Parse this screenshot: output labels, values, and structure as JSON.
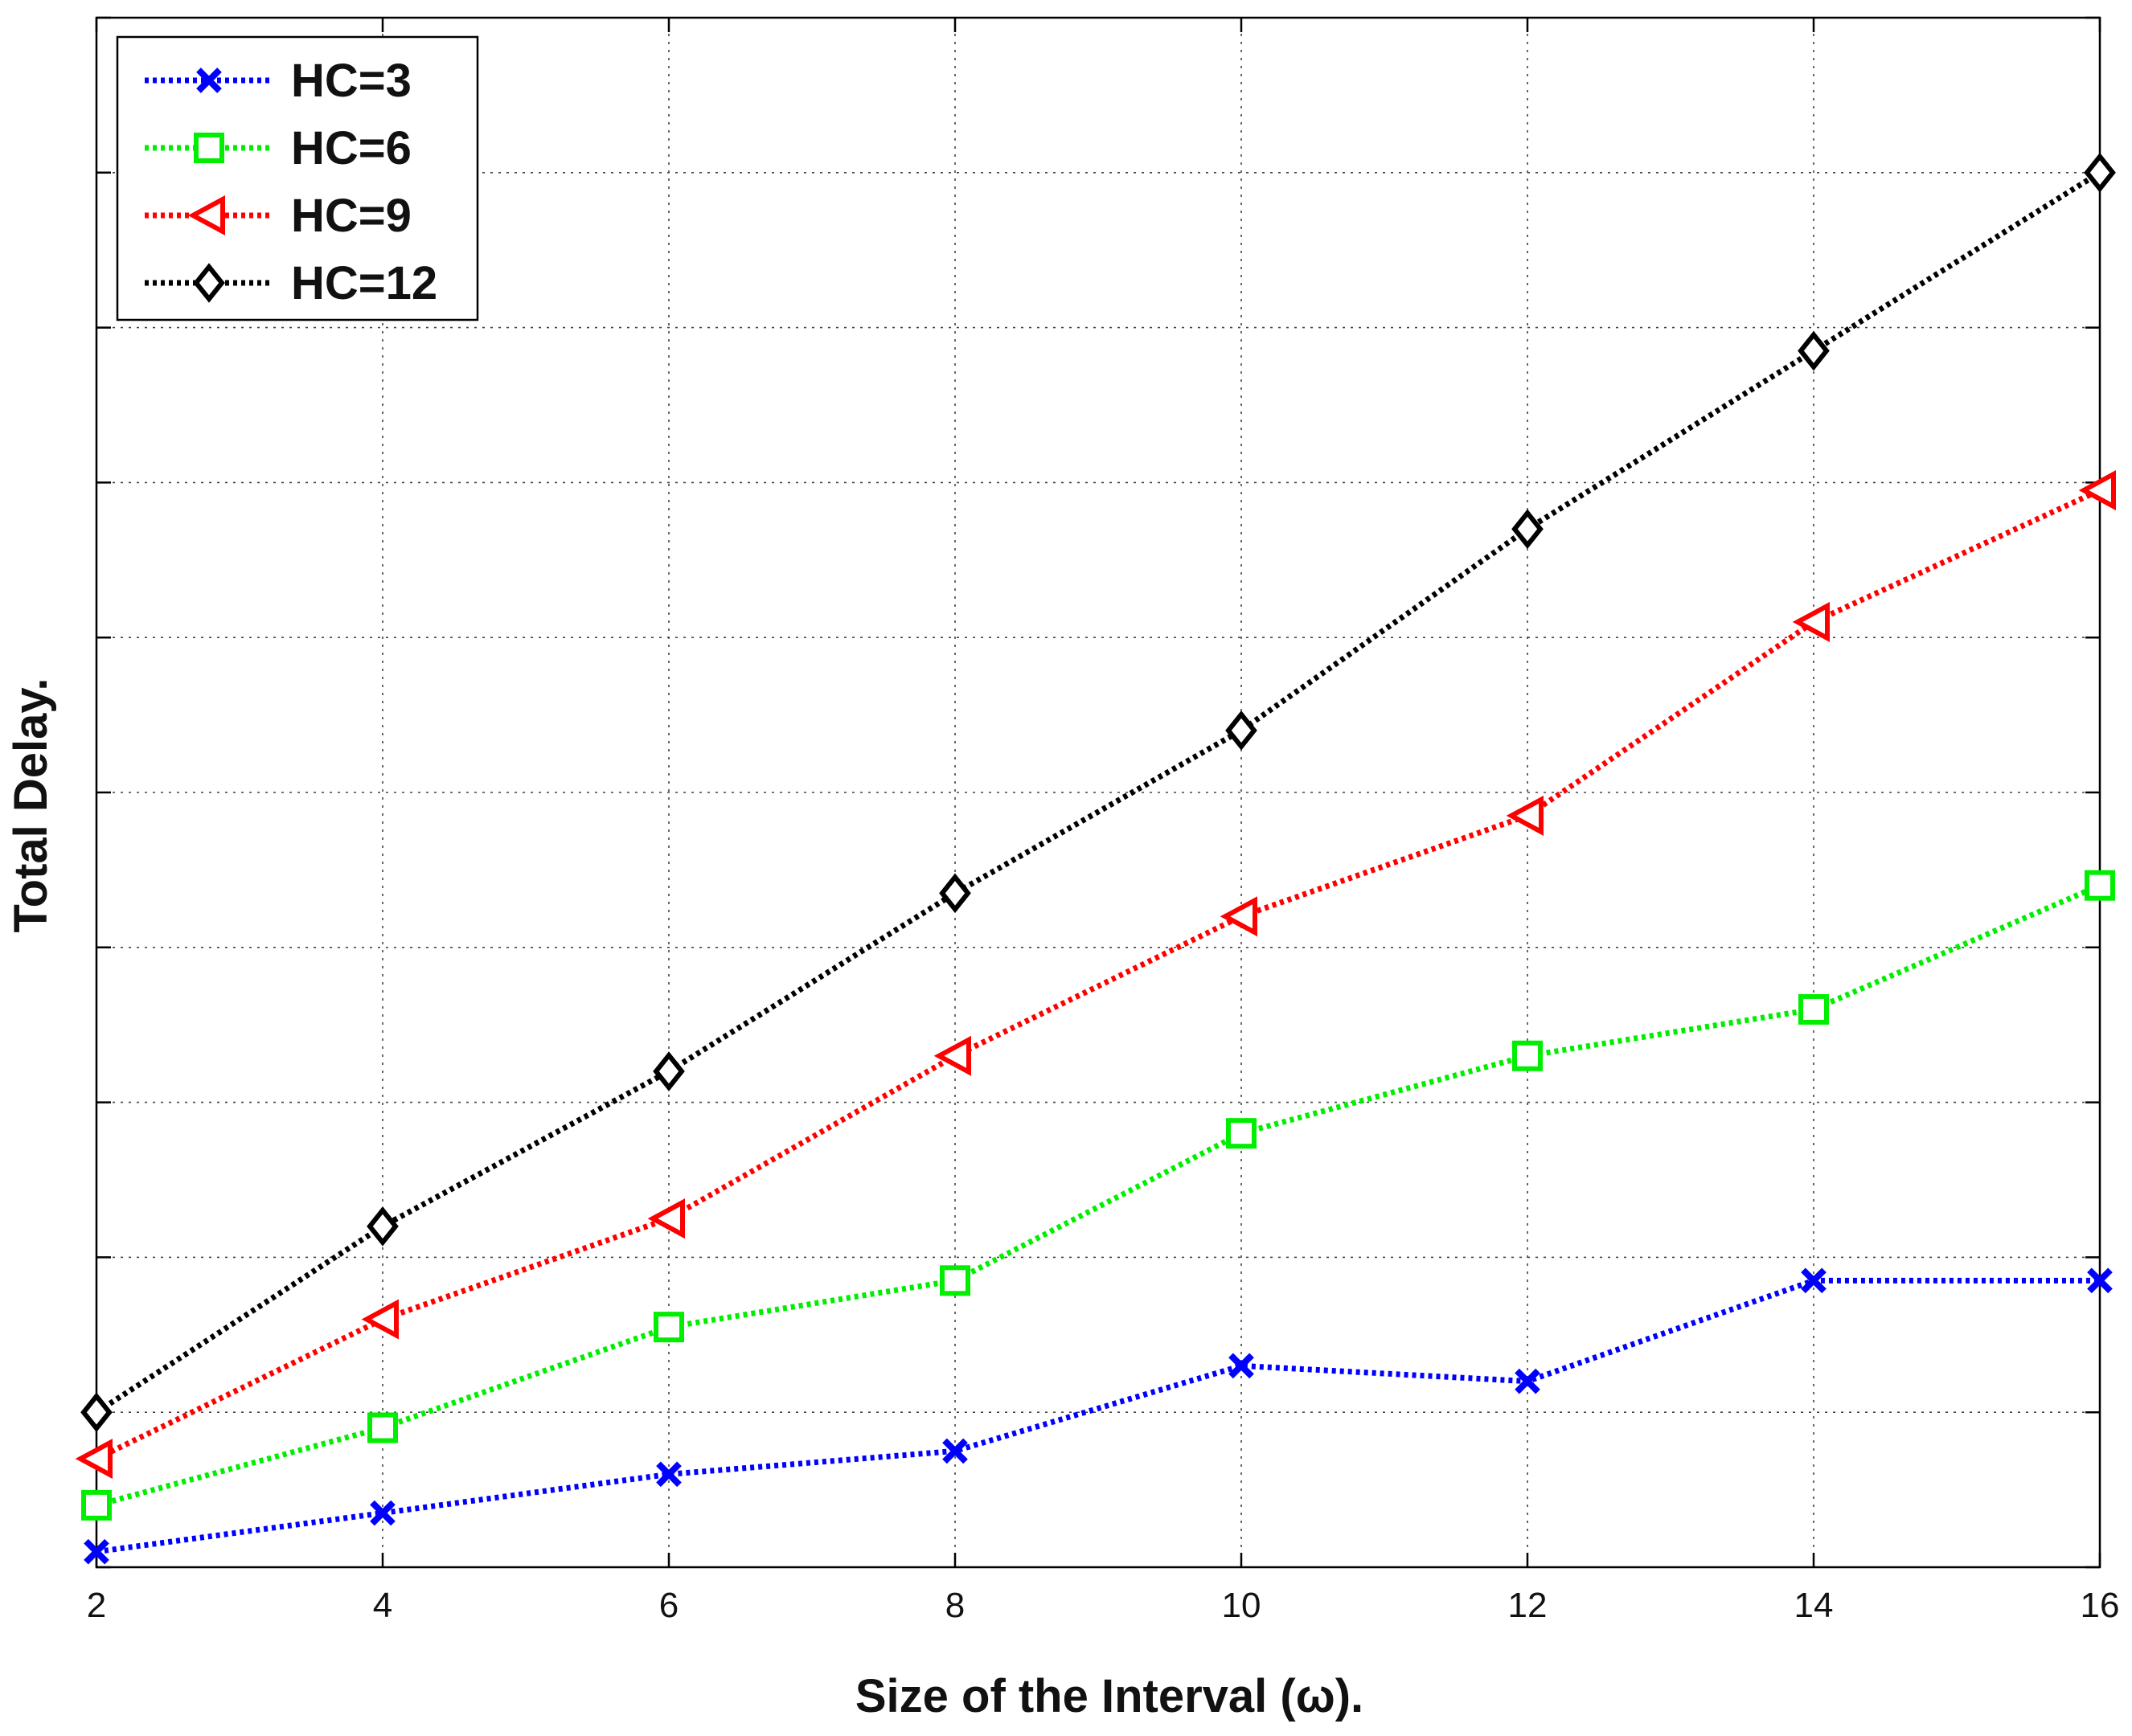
{
  "chart_data": {
    "type": "line",
    "title": "",
    "xlabel": "Size of the Interval (ω).",
    "ylabel": "Total Delay.",
    "x": [
      2,
      4,
      6,
      8,
      10,
      12,
      14,
      16
    ],
    "x_ticks": [
      "2",
      "4",
      "6",
      "8",
      "10",
      "12",
      "14",
      "16"
    ],
    "xlim": [
      2,
      16
    ],
    "ylim": [
      0,
      10
    ],
    "y_gridlines": [
      0,
      1,
      2,
      3,
      4,
      5,
      6,
      7,
      8,
      9,
      10
    ],
    "y_tick_labels_visible": false,
    "grid": true,
    "legend_position": "top-left",
    "series": [
      {
        "name": "HC=3",
        "color": "#0000ff",
        "marker": "x-icon",
        "values": [
          0.1,
          0.35,
          0.6,
          0.75,
          1.3,
          1.2,
          1.85,
          1.85
        ]
      },
      {
        "name": "HC=6",
        "color": "#00ee00",
        "marker": "square-icon",
        "values": [
          0.4,
          0.9,
          1.55,
          1.85,
          2.8,
          3.3,
          3.6,
          4.4
        ]
      },
      {
        "name": "HC=9",
        "color": "#ff0000",
        "marker": "triangle-left-icon",
        "values": [
          0.7,
          1.6,
          2.25,
          3.3,
          4.2,
          4.85,
          6.1,
          6.95
        ]
      },
      {
        "name": "HC=12",
        "color": "#000000",
        "marker": "diamond-icon",
        "values": [
          1.0,
          2.2,
          3.2,
          4.35,
          5.4,
          6.7,
          7.85,
          9.0
        ]
      }
    ]
  }
}
